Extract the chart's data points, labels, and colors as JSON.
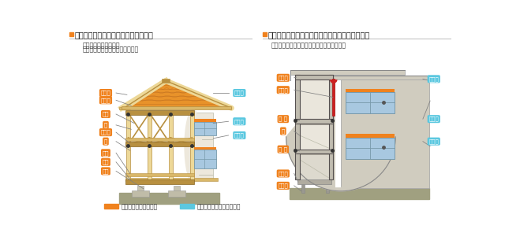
{
  "bg_color": "#ffffff",
  "left_title": "木造（在来軸組工法）の戸建住宅の例",
  "right_title": "鉄筋コンクリート造（壁式工法）の共同住宅の例",
  "left_subtitle1": "２階建ての場合の骨組",
  "left_subtitle2": "（小屋組、軸組、床組）等の構成",
  "right_subtitle": "２階建ての場合の骨組（壁、床組）等の構成",
  "orange": "#F0821E",
  "cyan": "#5BC8E0",
  "wood_light": "#EDD898",
  "wood_mid": "#D9B86A",
  "wood_dark": "#B89040",
  "roof_color": "#E8922A",
  "roof_dark": "#C07020",
  "wall_color": "#EDE8DC",
  "concrete_color": "#C0BCB0",
  "concrete_dark": "#555050",
  "ground_color": "#AAAА88",
  "window_color": "#A8C8E0",
  "text_color": "#333333",
  "legend_orange": "構造耐力上主要な部分",
  "legend_cyan": "雨水の浸入を防止する部分"
}
